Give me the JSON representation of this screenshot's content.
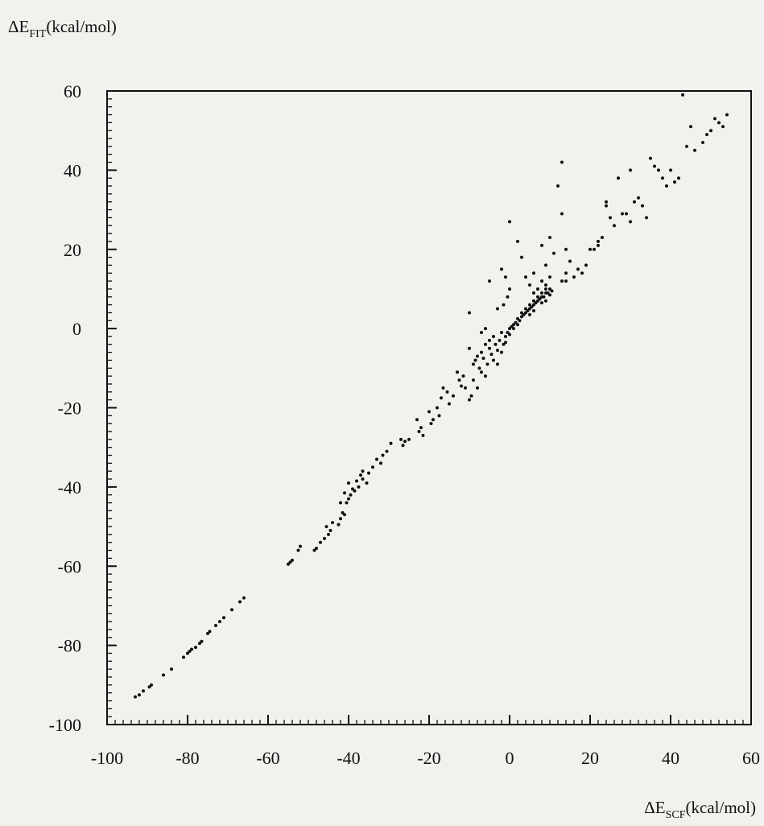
{
  "chart_data": {
    "type": "scatter",
    "title": "",
    "xlabel": {
      "main": "ΔE",
      "sub": "SCF",
      "unit": "(kcal/mol)"
    },
    "ylabel": {
      "main": "ΔE",
      "sub": "FIT",
      "unit": "(kcal/mol)"
    },
    "xlim": [
      -100,
      60
    ],
    "ylim": [
      -100,
      60
    ],
    "x_ticks": [
      -100,
      -80,
      -60,
      -40,
      -20,
      0,
      20,
      40,
      60
    ],
    "y_ticks": [
      -100,
      -80,
      -60,
      -40,
      -20,
      0,
      20,
      40,
      60
    ],
    "grid": false,
    "legend": "none",
    "series": [
      {
        "color": "#111111",
        "points": [
          [
            -93,
            -93
          ],
          [
            -92,
            -92.5
          ],
          [
            -91,
            -91.5
          ],
          [
            -89.5,
            -90.5
          ],
          [
            -89,
            -90
          ],
          [
            -86,
            -87.5
          ],
          [
            -84,
            -86
          ],
          [
            -81,
            -83
          ],
          [
            -80,
            -82
          ],
          [
            -79.5,
            -81.5
          ],
          [
            -79,
            -81
          ],
          [
            -78,
            -80.5
          ],
          [
            -77,
            -79.5
          ],
          [
            -76.5,
            -79
          ],
          [
            -75,
            -77
          ],
          [
            -74.5,
            -76.5
          ],
          [
            -73,
            -75
          ],
          [
            -72,
            -74
          ],
          [
            -71,
            -73
          ],
          [
            -69,
            -71
          ],
          [
            -67,
            -69
          ],
          [
            -66,
            -68
          ],
          [
            -55,
            -59.5
          ],
          [
            -54.5,
            -59
          ],
          [
            -54,
            -58.5
          ],
          [
            -52.5,
            -56
          ],
          [
            -52,
            -55
          ],
          [
            -48.5,
            -56
          ],
          [
            -48,
            -55.5
          ],
          [
            -47,
            -54
          ],
          [
            -46,
            -53
          ],
          [
            -45,
            -52
          ],
          [
            -45.5,
            -50
          ],
          [
            -44.5,
            -51
          ],
          [
            -44,
            -49
          ],
          [
            -42.5,
            -49.5
          ],
          [
            -42,
            -48
          ],
          [
            -41.5,
            -46.5
          ],
          [
            -41,
            -47
          ],
          [
            -42,
            -44
          ],
          [
            -40.5,
            -44
          ],
          [
            -41,
            -41.5
          ],
          [
            -40,
            -43
          ],
          [
            -39.5,
            -42
          ],
          [
            -40,
            -39
          ],
          [
            -39,
            -40.5
          ],
          [
            -38.5,
            -41
          ],
          [
            -38,
            -38.5
          ],
          [
            -37.5,
            -40
          ],
          [
            -37,
            -37
          ],
          [
            -36.5,
            -38
          ],
          [
            -36.5,
            -36
          ],
          [
            -35.5,
            -39
          ],
          [
            -35,
            -36.5
          ],
          [
            -34,
            -35
          ],
          [
            -33,
            -33
          ],
          [
            -32,
            -34
          ],
          [
            -31.5,
            -32
          ],
          [
            -30.5,
            -31
          ],
          [
            -29.5,
            -29
          ],
          [
            -27,
            -28
          ],
          [
            -26.5,
            -29.5
          ],
          [
            -26,
            -28.5
          ],
          [
            -25,
            -28
          ],
          [
            -23,
            -23
          ],
          [
            -22.5,
            -26
          ],
          [
            -22,
            -25
          ],
          [
            -21.5,
            -27
          ],
          [
            -20,
            -21
          ],
          [
            -19.5,
            -24
          ],
          [
            -19,
            -23
          ],
          [
            -18,
            -20
          ],
          [
            -17.5,
            -22
          ],
          [
            -17,
            -17.5
          ],
          [
            -16.5,
            -15
          ],
          [
            -15.5,
            -16
          ],
          [
            -15,
            -19
          ],
          [
            -14,
            -17
          ],
          [
            -13,
            -11
          ],
          [
            -12.5,
            -13
          ],
          [
            -12,
            -14.5
          ],
          [
            -11.5,
            -12
          ],
          [
            -11,
            -15
          ],
          [
            -10,
            -5
          ],
          [
            -10,
            -18
          ],
          [
            -9.5,
            -17
          ],
          [
            -9,
            -13
          ],
          [
            -9,
            -9
          ],
          [
            -8.5,
            -8
          ],
          [
            -8,
            -7
          ],
          [
            -8,
            -15
          ],
          [
            -7.5,
            -10
          ],
          [
            -7,
            -6
          ],
          [
            -7,
            -11
          ],
          [
            -6.5,
            -7.5
          ],
          [
            -6,
            -4
          ],
          [
            -6,
            -12
          ],
          [
            -5.5,
            -9
          ],
          [
            -5,
            -5
          ],
          [
            -5,
            -3
          ],
          [
            -4.5,
            -6.5
          ],
          [
            -4,
            -8
          ],
          [
            -4,
            -2
          ],
          [
            -3.5,
            -4
          ],
          [
            -3,
            -5.5
          ],
          [
            -3,
            -9
          ],
          [
            -2.5,
            -3
          ],
          [
            -2,
            -1
          ],
          [
            -2,
            -6
          ],
          [
            -1.5,
            -4
          ],
          [
            -1,
            -2
          ],
          [
            -1,
            -3.5
          ],
          [
            -0.5,
            -1
          ],
          [
            0,
            -1.5
          ],
          [
            0,
            0
          ],
          [
            0.5,
            0.5
          ],
          [
            1,
            0
          ],
          [
            1,
            1
          ],
          [
            1.5,
            1.5
          ],
          [
            2,
            1
          ],
          [
            2,
            2.5
          ],
          [
            2.5,
            2
          ],
          [
            3,
            3
          ],
          [
            3,
            4
          ],
          [
            3.5,
            3.5
          ],
          [
            4,
            4
          ],
          [
            4,
            5
          ],
          [
            4.5,
            4.5
          ],
          [
            5,
            5
          ],
          [
            5,
            6
          ],
          [
            5.5,
            5.5
          ],
          [
            6,
            6
          ],
          [
            6,
            7
          ],
          [
            6.5,
            6.5
          ],
          [
            7,
            7
          ],
          [
            7,
            8
          ],
          [
            7.5,
            7.5
          ],
          [
            8,
            8
          ],
          [
            8,
            9
          ],
          [
            8.5,
            8
          ],
          [
            9,
            9
          ],
          [
            9,
            10
          ],
          [
            9.5,
            9
          ],
          [
            10,
            10
          ],
          [
            10,
            8.5
          ],
          [
            10.5,
            9.5
          ],
          [
            8,
            12
          ],
          [
            9,
            11
          ],
          [
            7,
            10
          ],
          [
            6,
            9
          ],
          [
            6,
            4.5
          ],
          [
            5,
            3.5
          ],
          [
            9,
            7
          ],
          [
            8,
            6.5
          ],
          [
            -2,
            15
          ],
          [
            -1,
            13
          ],
          [
            0,
            10
          ],
          [
            -0.5,
            8
          ],
          [
            -1.5,
            6
          ],
          [
            -3,
            5
          ],
          [
            -5,
            12
          ],
          [
            -6,
            0
          ],
          [
            -7,
            -1
          ],
          [
            -10,
            4
          ],
          [
            0,
            27
          ],
          [
            2,
            22
          ],
          [
            3,
            18
          ],
          [
            4,
            13
          ],
          [
            5,
            11
          ],
          [
            6,
            14
          ],
          [
            8,
            21
          ],
          [
            9,
            16
          ],
          [
            10,
            13
          ],
          [
            10,
            23
          ],
          [
            11,
            19
          ],
          [
            12,
            36
          ],
          [
            13,
            42
          ],
          [
            13,
            29
          ],
          [
            14,
            20
          ],
          [
            14,
            14
          ],
          [
            15,
            17
          ],
          [
            16,
            13
          ],
          [
            17,
            15
          ],
          [
            18,
            14
          ],
          [
            19,
            16
          ],
          [
            13,
            12
          ],
          [
            14,
            12
          ],
          [
            20,
            20
          ],
          [
            21,
            20
          ],
          [
            22,
            21
          ],
          [
            22,
            22
          ],
          [
            23,
            23
          ],
          [
            24,
            31
          ],
          [
            24,
            32
          ],
          [
            25,
            28
          ],
          [
            26,
            26
          ],
          [
            27,
            38
          ],
          [
            28,
            29
          ],
          [
            29,
            29
          ],
          [
            30,
            27
          ],
          [
            30,
            40
          ],
          [
            31,
            32
          ],
          [
            32,
            33
          ],
          [
            33,
            31
          ],
          [
            34,
            28
          ],
          [
            35,
            43
          ],
          [
            36,
            41
          ],
          [
            37,
            40
          ],
          [
            38,
            38
          ],
          [
            39,
            36
          ],
          [
            40,
            40
          ],
          [
            41,
            37
          ],
          [
            42,
            38
          ],
          [
            43,
            59
          ],
          [
            44,
            46
          ],
          [
            45,
            51
          ],
          [
            46,
            45
          ],
          [
            48,
            47
          ],
          [
            49,
            49
          ],
          [
            50,
            50
          ],
          [
            51,
            53
          ],
          [
            52,
            52
          ],
          [
            54,
            54
          ],
          [
            53,
            51
          ]
        ]
      }
    ]
  }
}
